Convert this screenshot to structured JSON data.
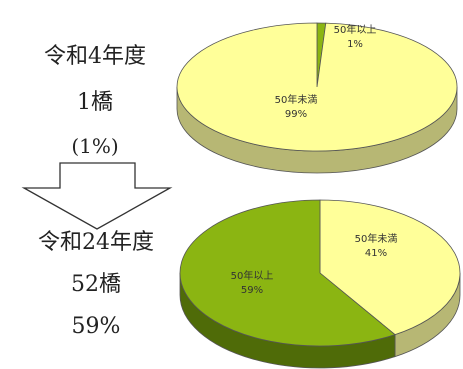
{
  "left_panel": {
    "top": {
      "era": "令和4年度",
      "count": "1橋",
      "percent": "(1%)"
    },
    "bottom": {
      "era": "令和24年度",
      "count": "52橋",
      "percent": "59%"
    }
  },
  "colors": {
    "over50": "#8bb512",
    "over50_side": "#4f6b08",
    "under50": "#ffff99",
    "under50_side": "#b7b774",
    "outline": "#555555"
  },
  "chart_data": [
    {
      "type": "pie",
      "title": "",
      "slices": [
        {
          "label": "50年以上",
          "value": 1,
          "value_label": "1%",
          "color": "#8bb512"
        },
        {
          "label": "50年未満",
          "value": 99,
          "value_label": "99%",
          "color": "#ffff99"
        }
      ]
    },
    {
      "type": "pie",
      "title": "",
      "slices": [
        {
          "label": "50年未満",
          "value": 41,
          "value_label": "41%",
          "color": "#ffff99"
        },
        {
          "label": "50年以上",
          "value": 59,
          "value_label": "59%",
          "color": "#8bb512"
        }
      ]
    }
  ]
}
